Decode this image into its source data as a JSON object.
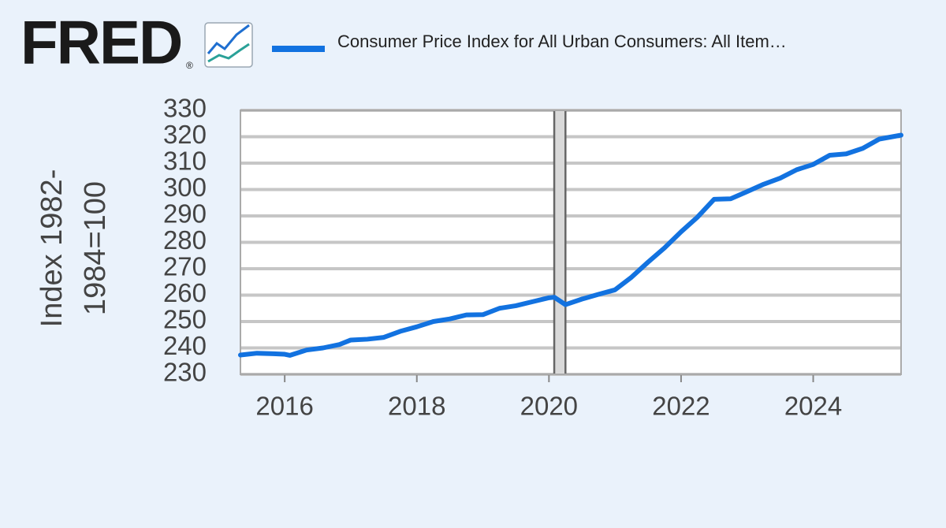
{
  "chart_data": {
    "type": "line",
    "logo": "FRED",
    "logo_mark": "®",
    "ylabel": [
      "Index 1982-",
      "1984=100"
    ],
    "series": [
      {
        "name": "Consumer Price Index for All Urban Consumers: All Item…",
        "color": "#1272e0",
        "values": [
          237.3,
          238.0,
          237.8,
          237.6,
          237.2,
          239.2,
          240.0,
          241.3,
          243.0,
          243.3,
          244.0,
          246.3,
          248.0,
          250.0,
          251.0,
          252.5,
          252.6,
          255.0,
          256.0,
          257.5,
          259.0,
          259.2,
          256.4,
          258.5,
          260.3,
          262.0,
          266.8,
          272.5,
          277.9,
          284.0,
          289.6,
          296.3,
          296.5,
          299.2,
          302.0,
          304.3,
          307.5,
          309.5,
          313.0,
          313.5,
          315.6,
          319.1,
          320.6
        ]
      }
    ],
    "x": [
      2015.33,
      2015.58,
      2015.83,
      2016.0,
      2016.08,
      2016.33,
      2016.58,
      2016.83,
      2017.0,
      2017.25,
      2017.5,
      2017.75,
      2018.0,
      2018.25,
      2018.5,
      2018.75,
      2019.0,
      2019.25,
      2019.5,
      2019.75,
      2020.0,
      2020.08,
      2020.25,
      2020.5,
      2020.75,
      2021.0,
      2021.25,
      2021.5,
      2021.75,
      2022.0,
      2022.25,
      2022.5,
      2022.75,
      2023.0,
      2023.25,
      2023.5,
      2023.75,
      2024.0,
      2024.25,
      2024.5,
      2024.75,
      2025.0,
      2025.33
    ],
    "recession": [
      2020.08,
      2020.25
    ],
    "xlim": [
      2015.33,
      2025.33
    ],
    "xticks": [
      2016,
      2018,
      2020,
      2022,
      2024
    ],
    "ylim": [
      230,
      330
    ],
    "yticks": [
      230,
      240,
      250,
      260,
      270,
      280,
      290,
      300,
      310,
      320,
      330
    ],
    "grid": true
  }
}
